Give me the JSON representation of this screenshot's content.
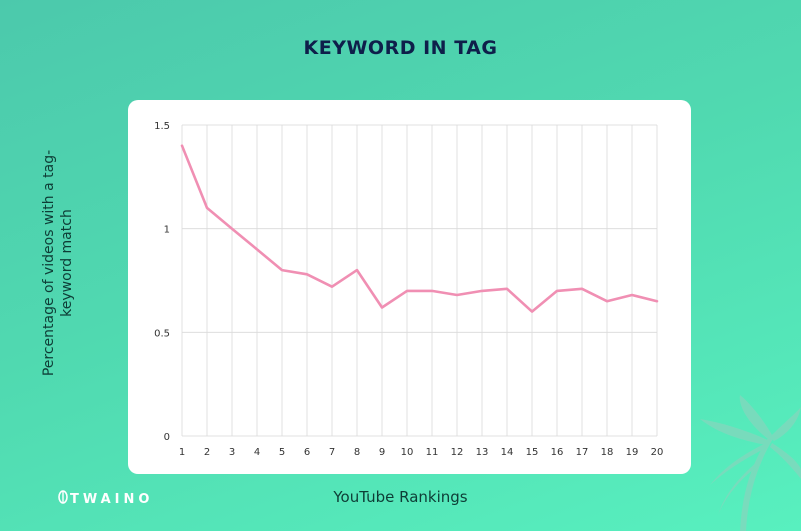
{
  "title": "KEYWORD IN TAG",
  "logo_text": "TWAINO",
  "colors": {
    "background": "#52d9b2",
    "line": "#f08fb3",
    "title": "#0e1f4a",
    "grid": "#d9d9d9"
  },
  "chart_data": {
    "type": "line",
    "title": "KEYWORD IN TAG",
    "xlabel": "YouTube Rankings",
    "ylabel": "Percentage of videos with a tag-keyword match",
    "x": [
      1,
      2,
      3,
      4,
      5,
      6,
      7,
      8,
      9,
      10,
      11,
      12,
      13,
      14,
      15,
      16,
      17,
      18,
      19,
      20
    ],
    "xticks": [
      "1",
      "2",
      "3",
      "4",
      "5",
      "6",
      "7",
      "8",
      "9",
      "10",
      "11",
      "12",
      "13",
      "14",
      "15",
      "16",
      "17",
      "18",
      "19",
      "20"
    ],
    "yticks": [
      "0",
      "0.5",
      "1",
      "1.5"
    ],
    "ylim": [
      0,
      1.5
    ],
    "grid": true,
    "series": [
      {
        "values": [
          1.4,
          1.1,
          1.0,
          0.9,
          0.8,
          0.78,
          0.72,
          0.8,
          0.62,
          0.7,
          0.7,
          0.68,
          0.7,
          0.71,
          0.6,
          0.7,
          0.71,
          0.65,
          0.68,
          0.65
        ]
      }
    ]
  }
}
